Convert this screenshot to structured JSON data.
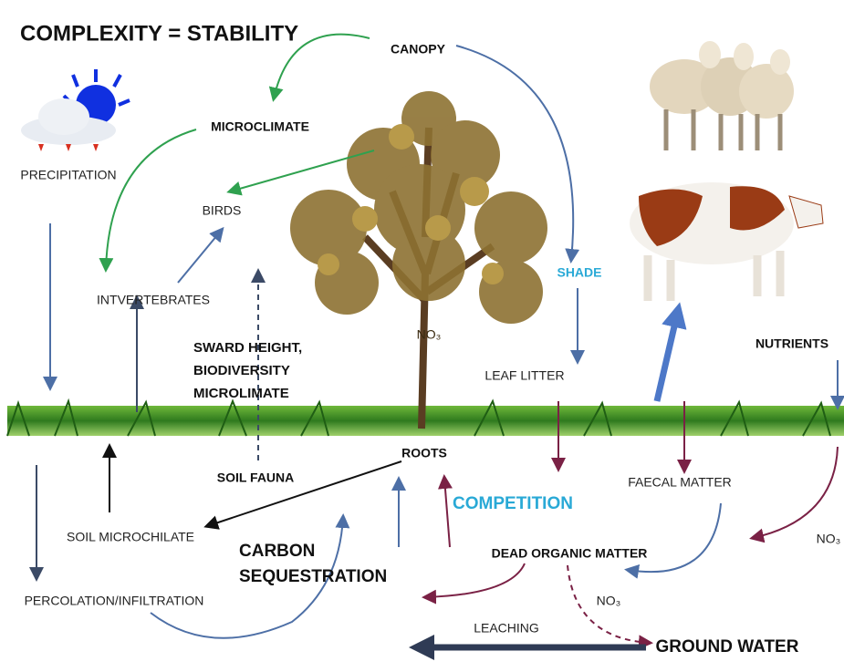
{
  "title": "COMPLEXITY = STABILITY",
  "nodes": [
    {
      "label": "CANOPY"
    },
    {
      "label": "MICROCLIMATE"
    },
    {
      "label": "PRECIPITATION"
    },
    {
      "label": "BIRDS"
    },
    {
      "label": "INTVERTEBRATES"
    },
    {
      "lines": [
        "SWARD HEIGHT,",
        "BIODIVERSITY",
        "MICROLIMATE"
      ]
    },
    {
      "label": "NO₃"
    },
    {
      "label": "SHADE"
    },
    {
      "label": "NUTRIENTS"
    },
    {
      "label": "LEAF LITTER"
    },
    {
      "label": "ROOTS"
    },
    {
      "label": "SOIL FAUNA"
    },
    {
      "label": "FAECAL MATTER"
    },
    {
      "label": "COMPETITION"
    },
    {
      "label": "NO₃"
    },
    {
      "label": "SOIL MICROCHILATE"
    },
    {
      "lines": [
        "CARBON",
        "SEQUESTRATION"
      ]
    },
    {
      "label": "DEAD ORGANIC MATTER"
    },
    {
      "label": "PERCOLATION/INFILTRATION"
    },
    {
      "label": "NO₃"
    },
    {
      "label": "LEACHING"
    },
    {
      "label": "GROUND WATER"
    }
  ]
}
